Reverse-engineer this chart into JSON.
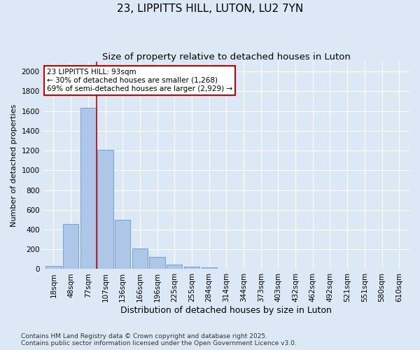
{
  "title": "23, LIPPITTS HILL, LUTON, LU2 7YN",
  "subtitle": "Size of property relative to detached houses in Luton",
  "xlabel": "Distribution of detached houses by size in Luton",
  "ylabel": "Number of detached properties",
  "categories": [
    "18sqm",
    "48sqm",
    "77sqm",
    "107sqm",
    "136sqm",
    "166sqm",
    "196sqm",
    "225sqm",
    "255sqm",
    "284sqm",
    "314sqm",
    "344sqm",
    "373sqm",
    "403sqm",
    "432sqm",
    "462sqm",
    "492sqm",
    "521sqm",
    "551sqm",
    "580sqm",
    "610sqm"
  ],
  "values": [
    35,
    460,
    1630,
    1210,
    500,
    210,
    125,
    45,
    25,
    15,
    5,
    0,
    0,
    0,
    0,
    0,
    0,
    0,
    0,
    0,
    0
  ],
  "bar_color": "#aec6e8",
  "bar_edge_color": "#6699cc",
  "vline_color": "#cc0000",
  "annotation_text": "23 LIPPITTS HILL: 93sqm\n← 30% of detached houses are smaller (1,268)\n69% of semi-detached houses are larger (2,929) →",
  "annotation_box_color": "#ffffff",
  "annotation_box_edge": "#cc0000",
  "ylim": [
    0,
    2100
  ],
  "yticks": [
    0,
    200,
    400,
    600,
    800,
    1000,
    1200,
    1400,
    1600,
    1800,
    2000
  ],
  "background_color": "#dce8f5",
  "footer_text": "Contains HM Land Registry data © Crown copyright and database right 2025.\nContains public sector information licensed under the Open Government Licence v3.0.",
  "title_fontsize": 11,
  "subtitle_fontsize": 9.5,
  "xlabel_fontsize": 9,
  "ylabel_fontsize": 8,
  "tick_fontsize": 7.5,
  "annotation_fontsize": 7.5,
  "footer_fontsize": 6.5
}
